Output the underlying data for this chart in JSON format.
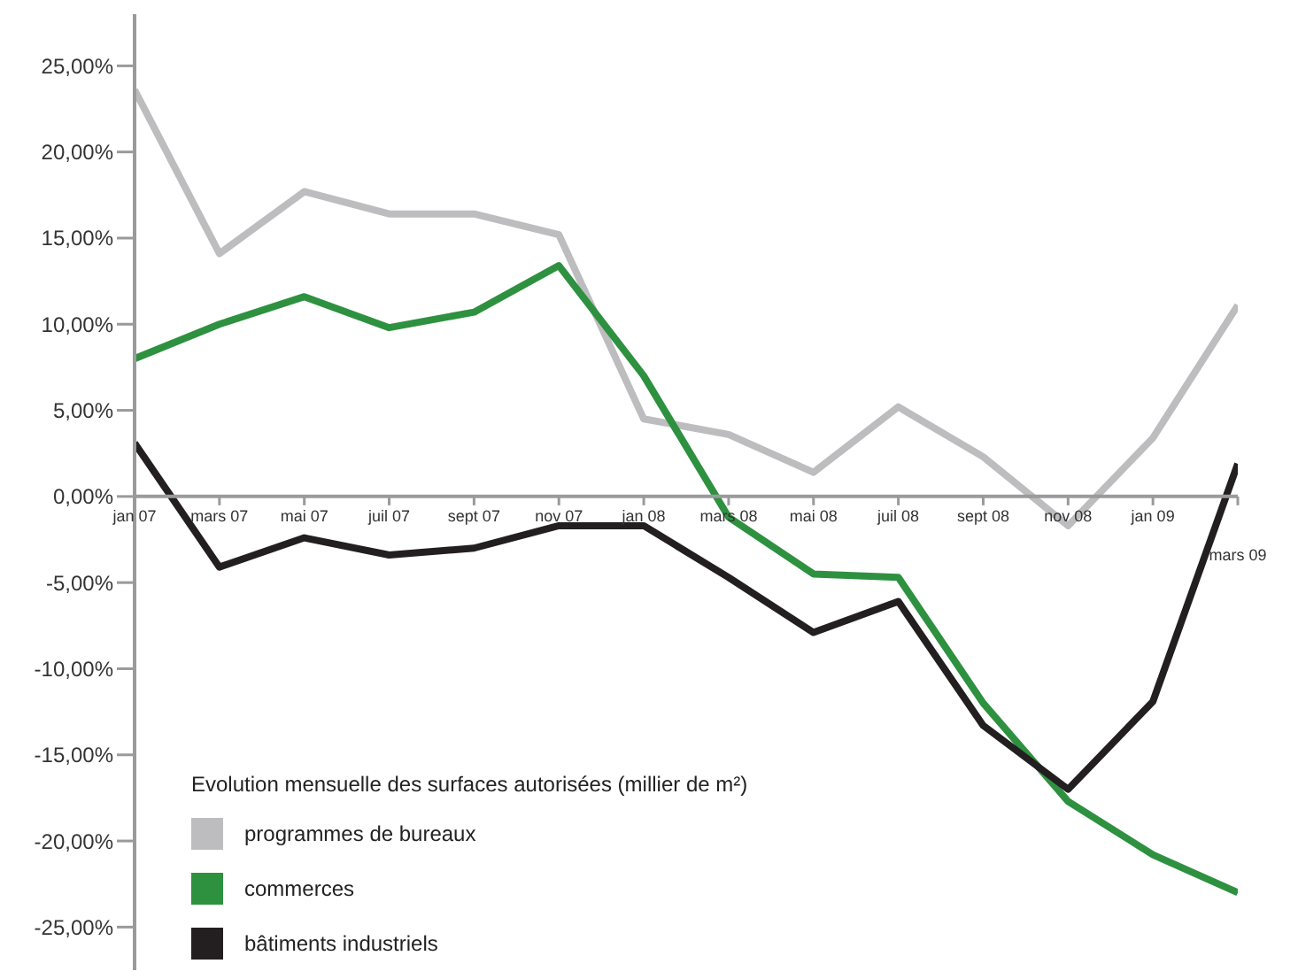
{
  "chart_data": {
    "type": "line",
    "categories": [
      "jan 07",
      "mars 07",
      "mai 07",
      "juil 07",
      "sept 07",
      "nov 07",
      "jan 08",
      "mars 08",
      "mai 08",
      "juil 08",
      "sept 08",
      "nov 08",
      "jan 09",
      "mars 09"
    ],
    "series": [
      {
        "name": "programmes de bureaux",
        "color": "#bdbdbf",
        "values": [
          23.6,
          14.1,
          17.7,
          16.4,
          16.4,
          15.2,
          4.5,
          3.6,
          1.4,
          5.2,
          2.3,
          -1.7,
          3.4,
          11.1
        ]
      },
      {
        "name": "commerces",
        "color": "#2e9140",
        "values": [
          8.0,
          10.0,
          11.6,
          9.8,
          10.7,
          13.4,
          7.0,
          -1.2,
          -4.5,
          -4.7,
          -12.0,
          -17.7,
          -20.8,
          -23.0
        ]
      },
      {
        "name": "bâtiments industriels",
        "color": "#231f20",
        "values": [
          3.1,
          -4.1,
          -2.4,
          -3.4,
          -3.0,
          -1.7,
          -1.7,
          -4.7,
          -7.9,
          -6.1,
          -13.3,
          -17.0,
          -11.9,
          1.9
        ]
      }
    ],
    "legend_title": "Evolution mensuelle des surfaces autorisées (millier de m²)",
    "legend": "bottom left",
    "ylim": [
      -27.5,
      28
    ],
    "yticks": [
      {
        "value": -25,
        "label": "-25,00%"
      },
      {
        "value": -20,
        "label": "-20,00%"
      },
      {
        "value": -15,
        "label": "-15,00%"
      },
      {
        "value": -10,
        "label": "-10,00%"
      },
      {
        "value": -5,
        "label": "-5,00%"
      },
      {
        "value": 0,
        "label": "0,00%"
      },
      {
        "value": 5,
        "label": "5,00%"
      },
      {
        "value": 10,
        "label": "10,00%"
      },
      {
        "value": 15,
        "label": "15,00%"
      },
      {
        "value": 20,
        "label": "20,00%"
      },
      {
        "value": 25,
        "label": "25,00%"
      }
    ],
    "grid": false,
    "marker": "none"
  }
}
